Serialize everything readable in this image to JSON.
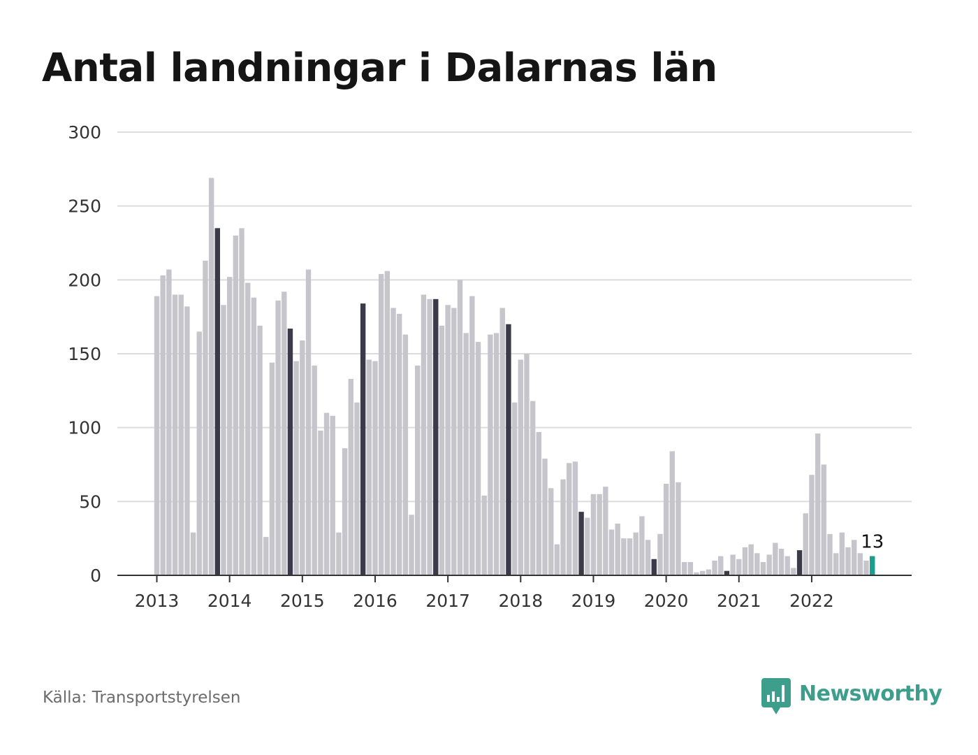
{
  "title": "Antal landningar i Dalarnas län",
  "source": "Källa: Transportstyrelsen",
  "brand": {
    "name": "Newsworthy",
    "icon": "bar-chart-speech-bubble-icon",
    "color": "#3d9e8c"
  },
  "colors": {
    "bar": "#c6c5cc",
    "highlight": "#3b3a48",
    "latest": "#1a9e8f",
    "grid": "#dcdcdc",
    "axis": "#333333",
    "text": "#333333"
  },
  "chart_data": {
    "type": "bar",
    "title": "Antal landningar i Dalarnas län",
    "xlabel": "",
    "ylabel": "",
    "ylim": [
      0,
      300
    ],
    "yticks": [
      0,
      50,
      100,
      150,
      200,
      250,
      300
    ],
    "grid": true,
    "x_tick_labels": [
      "2013",
      "2014",
      "2015",
      "2016",
      "2017",
      "2018",
      "2019",
      "2020",
      "2021",
      "2022"
    ],
    "x_tick_months": [
      "2013-01",
      "2014-01",
      "2015-01",
      "2016-01",
      "2017-01",
      "2018-01",
      "2019-01",
      "2020-01",
      "2021-01",
      "2022-01"
    ],
    "highlighted_month": "November",
    "latest_label": "13",
    "months": [
      "2013-01",
      "2013-02",
      "2013-03",
      "2013-04",
      "2013-05",
      "2013-06",
      "2013-07",
      "2013-08",
      "2013-09",
      "2013-10",
      "2013-11",
      "2013-12",
      "2014-01",
      "2014-02",
      "2014-03",
      "2014-04",
      "2014-05",
      "2014-06",
      "2014-07",
      "2014-08",
      "2014-09",
      "2014-10",
      "2014-11",
      "2014-12",
      "2015-01",
      "2015-02",
      "2015-03",
      "2015-04",
      "2015-05",
      "2015-06",
      "2015-07",
      "2015-08",
      "2015-09",
      "2015-10",
      "2015-11",
      "2015-12",
      "2016-01",
      "2016-02",
      "2016-03",
      "2016-04",
      "2016-05",
      "2016-06",
      "2016-07",
      "2016-08",
      "2016-09",
      "2016-10",
      "2016-11",
      "2016-12",
      "2017-01",
      "2017-02",
      "2017-03",
      "2017-04",
      "2017-05",
      "2017-06",
      "2017-07",
      "2017-08",
      "2017-09",
      "2017-10",
      "2017-11",
      "2017-12",
      "2018-01",
      "2018-02",
      "2018-03",
      "2018-04",
      "2018-05",
      "2018-06",
      "2018-07",
      "2018-08",
      "2018-09",
      "2018-10",
      "2018-11",
      "2018-12",
      "2019-01",
      "2019-02",
      "2019-03",
      "2019-04",
      "2019-05",
      "2019-06",
      "2019-07",
      "2019-08",
      "2019-09",
      "2019-10",
      "2019-11",
      "2019-12",
      "2020-01",
      "2020-02",
      "2020-03",
      "2020-04",
      "2020-05",
      "2020-06",
      "2020-07",
      "2020-08",
      "2020-09",
      "2020-10",
      "2020-11",
      "2020-12",
      "2021-01",
      "2021-02",
      "2021-03",
      "2021-04",
      "2021-05",
      "2021-06",
      "2021-07",
      "2021-08",
      "2021-09",
      "2021-10",
      "2021-11",
      "2021-12",
      "2022-01",
      "2022-02",
      "2022-03",
      "2022-04",
      "2022-05",
      "2022-06",
      "2022-07",
      "2022-08",
      "2022-09",
      "2022-10",
      "2022-11"
    ],
    "values": [
      189,
      203,
      207,
      190,
      190,
      182,
      29,
      165,
      213,
      269,
      235,
      183,
      202,
      230,
      235,
      198,
      188,
      169,
      26,
      144,
      186,
      192,
      167,
      145,
      159,
      207,
      142,
      98,
      110,
      108,
      29,
      86,
      133,
      117,
      184,
      146,
      145,
      204,
      206,
      181,
      177,
      163,
      41,
      142,
      190,
      187,
      187,
      169,
      183,
      181,
      200,
      164,
      189,
      158,
      54,
      163,
      164,
      181,
      170,
      117,
      146,
      150,
      118,
      97,
      79,
      59,
      21,
      65,
      76,
      77,
      43,
      39,
      55,
      55,
      60,
      31,
      35,
      25,
      25,
      29,
      40,
      24,
      11,
      28,
      62,
      84,
      63,
      9,
      9,
      2,
      3,
      4,
      10,
      13,
      3,
      14,
      11,
      19,
      21,
      15,
      9,
      14,
      22,
      18,
      13,
      5,
      17,
      42,
      68,
      96,
      75,
      28,
      15,
      29,
      19,
      24,
      15,
      10,
      13
    ]
  }
}
